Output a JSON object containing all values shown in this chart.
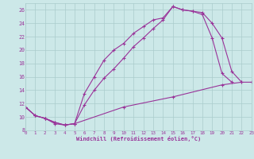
{
  "background_color": "#cce8e8",
  "grid_color": "#aacccc",
  "line_color": "#993399",
  "xlim": [
    0,
    23
  ],
  "ylim": [
    8,
    27
  ],
  "yticks": [
    8,
    10,
    12,
    14,
    16,
    18,
    20,
    22,
    24,
    26
  ],
  "xticks": [
    0,
    1,
    2,
    3,
    4,
    5,
    6,
    7,
    8,
    9,
    10,
    11,
    12,
    13,
    14,
    15,
    16,
    17,
    18,
    19,
    20,
    21,
    22,
    23
  ],
  "xlabel": "Windchill (Refroidissement éolien,°C)",
  "line1_x": [
    0,
    1,
    2,
    3,
    4,
    5,
    6,
    7,
    8,
    9,
    10,
    11,
    12,
    13,
    14,
    15,
    16,
    17,
    18,
    19,
    20,
    21,
    22
  ],
  "line1_y": [
    11.5,
    10.2,
    9.8,
    9.0,
    8.8,
    9.0,
    13.5,
    16.0,
    18.5,
    20.0,
    21.0,
    22.5,
    23.5,
    24.5,
    24.8,
    26.5,
    26.0,
    25.8,
    25.6,
    24.0,
    21.8,
    16.8,
    15.2
  ],
  "line2_x": [
    0,
    1,
    2,
    3,
    4,
    5,
    6,
    7,
    8,
    9,
    10,
    11,
    12,
    13,
    14,
    15,
    16,
    17,
    18,
    19,
    20,
    21
  ],
  "line2_y": [
    11.5,
    10.2,
    9.8,
    9.2,
    8.8,
    9.0,
    11.8,
    14.0,
    15.8,
    17.2,
    18.8,
    20.5,
    21.8,
    23.2,
    24.5,
    26.5,
    26.0,
    25.8,
    25.3,
    21.8,
    16.5,
    15.2
  ],
  "line3_x": [
    0,
    1,
    2,
    3,
    4,
    5,
    10,
    15,
    20,
    22,
    23
  ],
  "line3_y": [
    11.5,
    10.2,
    9.8,
    9.2,
    8.8,
    9.0,
    11.5,
    13.0,
    14.8,
    15.2,
    15.2
  ]
}
